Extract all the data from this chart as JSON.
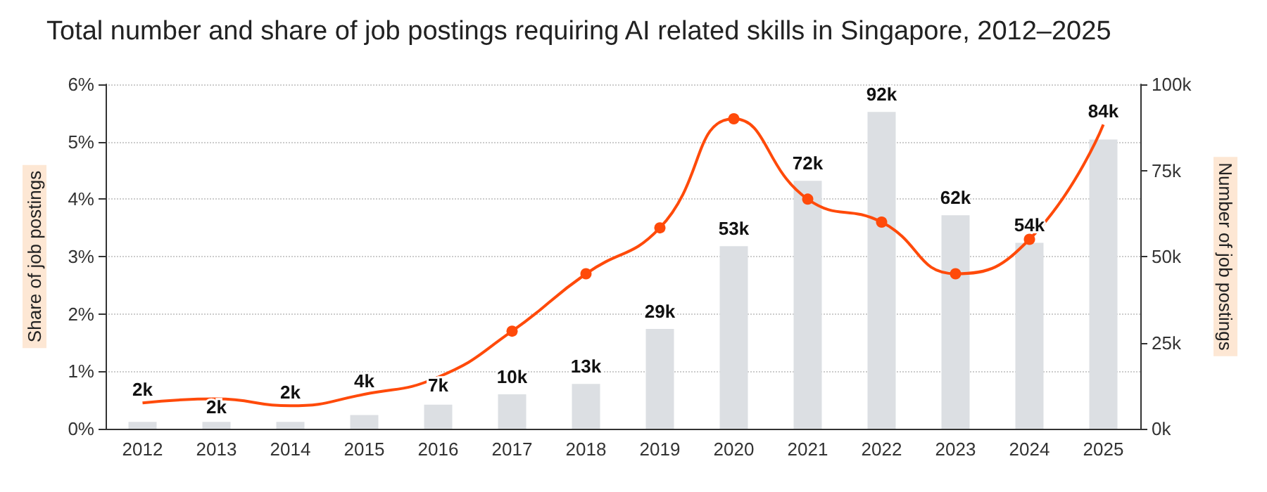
{
  "chart_data": {
    "type": "bar",
    "title": "Total number and share of job postings requiring AI related skills in Singapore, 2012–2025",
    "categories": [
      "2012",
      "2013",
      "2014",
      "2015",
      "2016",
      "2017",
      "2018",
      "2019",
      "2020",
      "2021",
      "2022",
      "2023",
      "2024",
      "2025"
    ],
    "series": [
      {
        "axis": "y2",
        "color": "#dcdfe3",
        "values": [
          2000,
          2000,
          2000,
          4000,
          7000,
          10000,
          13000,
          29000,
          53000,
          72000,
          92000,
          62000,
          54000,
          84000
        ],
        "value_labels": [
          "2k",
          "2k",
          "2k",
          "4k",
          "7k",
          "10k",
          "13k",
          "29k",
          "53k",
          "72k",
          "92k",
          "62k",
          "54k",
          "84k"
        ]
      },
      {
        "type": "line",
        "axis": "y",
        "color": "#ff4a0a",
        "values": [
          0.45,
          0.52,
          0.4,
          0.6,
          0.9,
          1.7,
          2.7,
          3.5,
          5.4,
          4.0,
          3.6,
          2.7,
          3.3,
          5.3
        ]
      }
    ],
    "ylabel": "Share of job postings",
    "y2label": "Number of job postings",
    "ylim": [
      0,
      6
    ],
    "yticks": [
      {
        "value": 0,
        "label": "0%"
      },
      {
        "value": 1,
        "label": "1%"
      },
      {
        "value": 2,
        "label": "2%"
      },
      {
        "value": 3,
        "label": "3%"
      },
      {
        "value": 4,
        "label": "4%"
      },
      {
        "value": 5,
        "label": "5%"
      },
      {
        "value": 6,
        "label": "6%"
      }
    ],
    "y2lim": [
      0,
      100000
    ],
    "y2ticks": [
      {
        "value": 0,
        "label": "0k"
      },
      {
        "value": 25000,
        "label": "25k"
      },
      {
        "value": 50000,
        "label": "50k"
      },
      {
        "value": 75000,
        "label": "75k"
      },
      {
        "value": 100000,
        "label": "100k"
      }
    ],
    "grid": true,
    "marker": "circle"
  }
}
